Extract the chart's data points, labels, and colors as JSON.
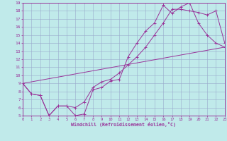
{
  "xlabel": "Windchill (Refroidissement éolien,°C)",
  "xlim": [
    0,
    23
  ],
  "ylim": [
    5,
    19
  ],
  "xticks": [
    0,
    1,
    2,
    3,
    4,
    5,
    6,
    7,
    8,
    9,
    10,
    11,
    12,
    13,
    14,
    15,
    16,
    17,
    18,
    19,
    20,
    21,
    22,
    23
  ],
  "yticks": [
    5,
    6,
    7,
    8,
    9,
    10,
    11,
    12,
    13,
    14,
    15,
    16,
    17,
    18,
    19
  ],
  "bg_color": "#c0eaea",
  "line_color": "#993399",
  "grid_color": "#99aacc",
  "line1_x": [
    0,
    1,
    2,
    3,
    4,
    5,
    6,
    7,
    8,
    9,
    10,
    11,
    12,
    13,
    14,
    15,
    16,
    17,
    18,
    19,
    20,
    21,
    22,
    23
  ],
  "line1_y": [
    9.0,
    7.7,
    7.5,
    5.0,
    6.2,
    6.2,
    5.0,
    5.2,
    8.2,
    8.5,
    9.3,
    9.5,
    12.3,
    14.0,
    15.5,
    16.5,
    18.7,
    17.7,
    18.5,
    19.0,
    16.5,
    15.0,
    14.0,
    13.5
  ],
  "line2_x": [
    0,
    1,
    2,
    3,
    4,
    5,
    6,
    7,
    8,
    9,
    10,
    11,
    12,
    13,
    14,
    15,
    16,
    17,
    18,
    19,
    20,
    21,
    22,
    23
  ],
  "line2_y": [
    9.0,
    7.7,
    7.5,
    5.0,
    6.2,
    6.2,
    6.0,
    6.7,
    8.5,
    9.2,
    9.5,
    10.3,
    11.3,
    12.3,
    13.5,
    15.0,
    16.5,
    18.2,
    18.2,
    18.0,
    17.8,
    17.5,
    18.0,
    14.0
  ],
  "line3_x": [
    0,
    23
  ],
  "line3_y": [
    9.0,
    13.5
  ]
}
